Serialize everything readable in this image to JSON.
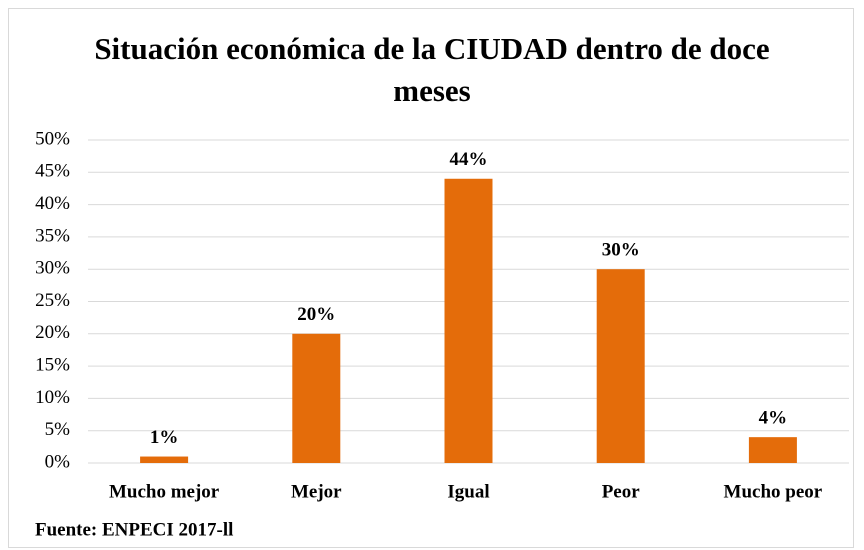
{
  "chart_data": {
    "type": "bar",
    "title": "Situación económica de la CIUDAD dentro de doce meses",
    "categories": [
      "Mucho mejor",
      "Mejor",
      "Igual",
      "Peor",
      "Mucho peor"
    ],
    "values": [
      1,
      20,
      44,
      30,
      4
    ],
    "value_labels": [
      "1%",
      "20%",
      "44%",
      "30%",
      "4%"
    ],
    "color": "#e46c0a",
    "ylim": [
      0,
      50
    ],
    "yticks": [
      {
        "value": 0,
        "label": "0%"
      },
      {
        "value": 5,
        "label": "5%"
      },
      {
        "value": 10,
        "label": "10%"
      },
      {
        "value": 15,
        "label": "15%"
      },
      {
        "value": 20,
        "label": "20%"
      },
      {
        "value": 25,
        "label": "25%"
      },
      {
        "value": 30,
        "label": "30%"
      },
      {
        "value": 35,
        "label": "35%"
      },
      {
        "value": 40,
        "label": "40%"
      },
      {
        "value": 45,
        "label": "45%"
      },
      {
        "value": 50,
        "label": "50%"
      }
    ],
    "grid": true,
    "annotation": "Fuente: ENPECI 2017-ll"
  }
}
